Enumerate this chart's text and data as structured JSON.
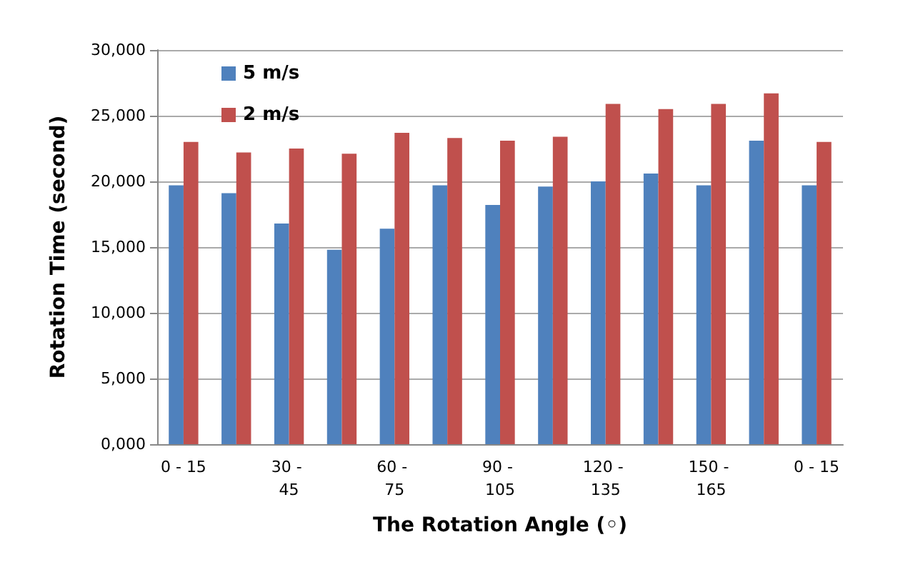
{
  "chart_data": {
    "type": "bar",
    "xlabel": "The Rotation Angle (◦)",
    "ylabel": "Rotation Time (second)",
    "categories": [
      "0 - 15",
      null,
      "30 - 45",
      null,
      "60 - 75",
      null,
      "90 - 105",
      null,
      "120 - 135",
      null,
      "150 - 165",
      null,
      "0 - 15"
    ],
    "series": [
      {
        "name": "5 m/s",
        "color": "#4f81bd",
        "values": [
          19700,
          19100,
          16800,
          14800,
          16400,
          19700,
          18200,
          19600,
          20000,
          20600,
          19700,
          23100,
          19700
        ]
      },
      {
        "name": "2 m/s",
        "color": "#c0504d",
        "values": [
          23000,
          22200,
          22500,
          22100,
          23700,
          23300,
          23100,
          23400,
          25900,
          25500,
          25900,
          26700,
          23000
        ]
      }
    ],
    "ylim": [
      0,
      30000
    ],
    "yticks": [
      {
        "value": 0,
        "label": "0,000"
      },
      {
        "value": 5000,
        "label": "5,000"
      },
      {
        "value": 10000,
        "label": "10,000"
      },
      {
        "value": 15000,
        "label": "15,000"
      },
      {
        "value": 20000,
        "label": "20,000"
      },
      {
        "value": 25000,
        "label": "25,000"
      },
      {
        "value": 30000,
        "label": "30,000"
      }
    ],
    "grid": "y",
    "legend": "top left"
  }
}
